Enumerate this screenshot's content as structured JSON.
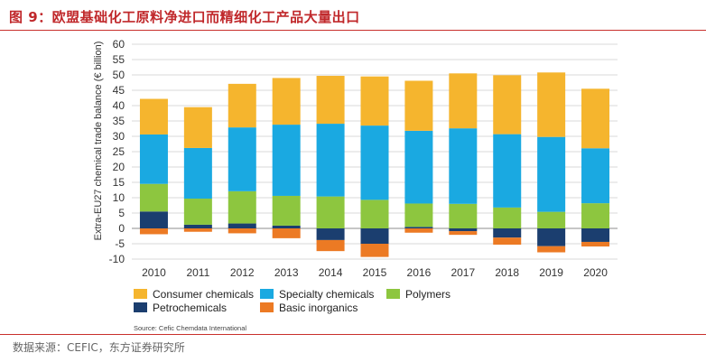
{
  "figure_title": "图 9：欧盟基础化工原料净进口而精细化工产品大量出口",
  "footer_source": "数据来源：CEFIC，东方证券研究所",
  "colors": {
    "consumer": "#f5b52e",
    "specialty": "#1aa9e1",
    "polymers": "#8dc63f",
    "petrochemicals": "#1b3e6f",
    "inorganics": "#ec7a24",
    "title_red": "#c0282b",
    "grid": "#d9d9d9"
  },
  "chart_data": {
    "type": "bar",
    "stacked": true,
    "title": "",
    "xlabel": "",
    "ylabel": "Extra-EU27 chemical trade balance (€ billion)",
    "ylim": [
      -10,
      60
    ],
    "yticks": [
      "-10",
      "-5",
      "0",
      "5",
      "10",
      "15",
      "20",
      "25",
      "30",
      "35",
      "40",
      "45",
      "50",
      "55",
      "60"
    ],
    "categories": [
      "2010",
      "2011",
      "2012",
      "2013",
      "2014",
      "2015",
      "2016",
      "2017",
      "2018",
      "2019",
      "2020"
    ],
    "series": [
      {
        "name": "Petrochemicals",
        "color_key": "petrochemicals",
        "values": [
          5.5,
          1.2,
          1.6,
          0.9,
          -3.8,
          -5.0,
          0.5,
          -0.9,
          -3.0,
          -5.8,
          -4.4
        ]
      },
      {
        "name": "Polymers",
        "color_key": "polymers",
        "values": [
          9.0,
          8.5,
          10.5,
          9.7,
          10.4,
          9.3,
          7.6,
          8.0,
          6.8,
          5.4,
          8.2
        ]
      },
      {
        "name": "Specialty chemicals",
        "color_key": "specialty",
        "values": [
          16.1,
          16.5,
          20.8,
          23.2,
          23.7,
          24.2,
          23.7,
          24.6,
          23.9,
          24.4,
          17.9
        ]
      },
      {
        "name": "Consumer chemicals",
        "color_key": "consumer",
        "values": [
          11.6,
          13.3,
          14.2,
          15.2,
          15.6,
          16.0,
          16.3,
          17.9,
          19.2,
          21.0,
          19.4
        ]
      },
      {
        "name": "Basic inorganics",
        "color_key": "inorganics",
        "values": [
          -1.9,
          -1.1,
          -1.6,
          -3.2,
          -3.6,
          -4.3,
          -1.4,
          -1.2,
          -2.3,
          -2.0,
          -1.5
        ]
      }
    ],
    "legend": [
      {
        "name": "Consumer chemicals",
        "color_key": "consumer"
      },
      {
        "name": "Specialty chemicals",
        "color_key": "specialty"
      },
      {
        "name": "Polymers",
        "color_key": "polymers"
      },
      {
        "name": "Petrochemicals",
        "color_key": "petrochemicals"
      },
      {
        "name": "Basic inorganics",
        "color_key": "inorganics"
      }
    ],
    "legend_position": "bottom-left",
    "grid": true,
    "source": "Source: Cefic Chemdata International"
  }
}
